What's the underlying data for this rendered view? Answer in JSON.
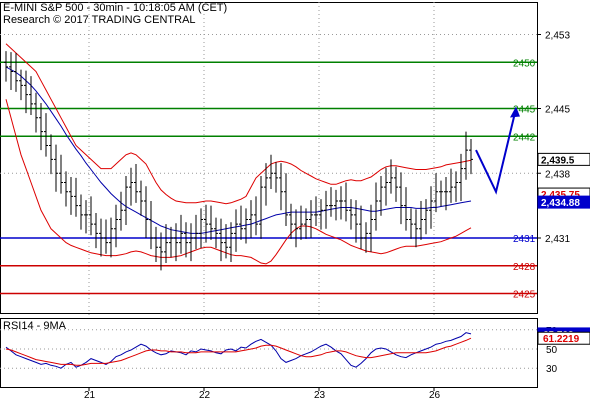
{
  "header": {
    "title": "E-MINI S&P 500 - 30min - 10:18:05 AM (CET)",
    "subtitle": "Research © 2017 TRADING CENTRAL"
  },
  "rsi_panel": {
    "label": "RSI14 - 9MA"
  },
  "colors": {
    "resistance": "#008000",
    "pivot": "#0000cc",
    "support": "#cc0000",
    "price": "#000000",
    "bollinger": "#dd0000",
    "moving_average": "#0000aa",
    "forecast_arrow": "#0000cc",
    "rsi_line": "#0000aa",
    "rsi_ma": "#dd0000"
  },
  "chart_data": [
    {
      "type": "ohlc",
      "ylim": [
        2423,
        2455
      ],
      "y_ticks": [
        "2,453",
        "2,445",
        "2,438",
        "2,431"
      ],
      "y_tick_values": [
        2453,
        2445,
        2438,
        2431
      ],
      "x_ticks": [
        "21",
        "22",
        "23",
        "26"
      ],
      "x_tick_bars": [
        15,
        38,
        61,
        84
      ],
      "bar_count": 94,
      "levels": [
        {
          "label": "2450",
          "value": 2450,
          "kind": "resistance"
        },
        {
          "label": "2445",
          "value": 2445,
          "kind": "resistance"
        },
        {
          "label": "2442",
          "value": 2442,
          "kind": "resistance"
        },
        {
          "label": "2431",
          "value": 2431,
          "kind": "pivot"
        },
        {
          "label": "2428",
          "value": 2428,
          "kind": "support"
        },
        {
          "label": "2425",
          "value": 2425,
          "kind": "support"
        }
      ],
      "price_tags": [
        {
          "label": "2,439.5",
          "value": 2439.5,
          "bg": "#ffffff",
          "fg": "#000000"
        },
        {
          "label": "2,435.75",
          "value": 2435.75,
          "bg": "#ffffff",
          "fg": "#dd0000"
        },
        {
          "label": "2,434.88",
          "value": 2434.88,
          "bg": "#0000cc",
          "fg": "#ffffff"
        }
      ],
      "close": [
        2449.5,
        2449,
        2448,
        2447.5,
        2446.5,
        2445.5,
        2444,
        2442.5,
        2441,
        2439.5,
        2438,
        2437,
        2436,
        2435.5,
        2434.5,
        2433.5,
        2433.5,
        2432.5,
        2431.5,
        2431,
        2430.5,
        2432,
        2433,
        2434,
        2436.5,
        2437,
        2436,
        2435,
        2433,
        2431,
        2430,
        2429.5,
        2430.5,
        2431,
        2430.5,
        2431.5,
        2430.5,
        2431,
        2431.5,
        2433,
        2432.5,
        2432,
        2431.5,
        2430.5,
        2430,
        2431.5,
        2432.5,
        2432,
        2433,
        2433.5,
        2432.5,
        2436.5,
        2437.5,
        2438,
        2437.5,
        2436,
        2433.5,
        2432.5,
        2432,
        2432.5,
        2433,
        2433.5,
        2433.5,
        2434,
        2434.5,
        2434.5,
        2435,
        2435,
        2434,
        2433.5,
        2432.5,
        2431,
        2431.5,
        2433,
        2435,
        2436.5,
        2437,
        2437.5,
        2436.5,
        2434.5,
        2433,
        2432.5,
        2432,
        2433,
        2434,
        2435,
        2436,
        2436,
        2436,
        2436.5,
        2437,
        2438.5,
        2440.5,
        2439.5
      ],
      "upper_band": [
        2452,
        2451.5,
        2451,
        2450.5,
        2450,
        2449.5,
        2449,
        2448,
        2447,
        2446,
        2445,
        2444,
        2443,
        2442,
        2441,
        2440.5,
        2440,
        2439.5,
        2439,
        2438.5,
        2438.5,
        2438.5,
        2439,
        2439.5,
        2440,
        2440.2,
        2440,
        2439.5,
        2439,
        2438,
        2437,
        2436.2,
        2435.7,
        2435.3,
        2435,
        2434.9,
        2434.8,
        2434.8,
        2434.8,
        2434.9,
        2435,
        2435,
        2434.9,
        2434.8,
        2434.7,
        2434.8,
        2435,
        2435.2,
        2435.5,
        2436.5,
        2437.5,
        2438,
        2438.5,
        2439,
        2439.2,
        2439.3,
        2439.2,
        2439,
        2438.7,
        2438.3,
        2438,
        2437.7,
        2437.4,
        2437.2,
        2437,
        2436.8,
        2436.8,
        2437,
        2437.2,
        2437.3,
        2437.2,
        2437.2,
        2437.4,
        2437.6,
        2438,
        2438.4,
        2438.7,
        2438.8,
        2438.8,
        2438.7,
        2438.6,
        2438.5,
        2438.4,
        2438.4,
        2438.4,
        2438.5,
        2438.6,
        2438.7,
        2438.9,
        2439,
        2439.1,
        2439.2,
        2439.3,
        2439.4
      ],
      "lower_band": [
        2446,
        2444,
        2442,
        2440,
        2438.5,
        2437,
        2435.5,
        2434,
        2433,
        2432,
        2431.5,
        2431,
        2430.5,
        2430.2,
        2430,
        2429.8,
        2429.6,
        2429.4,
        2429.3,
        2429.2,
        2429.1,
        2429.1,
        2429.1,
        2429.2,
        2429.3,
        2429.5,
        2429.6,
        2429.5,
        2429.3,
        2429.1,
        2429,
        2428.9,
        2428.9,
        2428.9,
        2429,
        2429.1,
        2429.3,
        2429.5,
        2429.7,
        2429.9,
        2430,
        2430,
        2429.8,
        2429.6,
        2429.4,
        2429.2,
        2429.1,
        2429.1,
        2429,
        2428.9,
        2428.6,
        2428.3,
        2428.2,
        2428.5,
        2429.2,
        2430,
        2430.8,
        2431.5,
        2432,
        2432.3,
        2432.3,
        2432.2,
        2432,
        2431.7,
        2431.4,
        2431.2,
        2431,
        2430.8,
        2430.5,
        2430.2,
        2430,
        2429.8,
        2429.6,
        2429.5,
        2429.4,
        2429.3,
        2429.4,
        2429.6,
        2429.8,
        2430,
        2430.1,
        2430.1,
        2430.1,
        2430.2,
        2430.3,
        2430.4,
        2430.5,
        2430.6,
        2430.8,
        2431,
        2431.2,
        2431.5,
        2431.8,
        2432.1
      ],
      "moving_average": [
        2449.5,
        2449.2,
        2448.9,
        2448.5,
        2448,
        2447.5,
        2446.9,
        2446.2,
        2445.5,
        2444.7,
        2443.9,
        2443.1,
        2442.2,
        2441.4,
        2440.6,
        2439.9,
        2439.1,
        2438.4,
        2437.7,
        2437,
        2436.4,
        2435.8,
        2435.3,
        2434.8,
        2434.4,
        2434.1,
        2433.8,
        2433.5,
        2433.2,
        2432.9,
        2432.6,
        2432.3,
        2432.1,
        2431.9,
        2431.8,
        2431.7,
        2431.6,
        2431.5,
        2431.5,
        2431.5,
        2431.6,
        2431.7,
        2431.8,
        2431.9,
        2432,
        2432.1,
        2432.2,
        2432.3,
        2432.4,
        2432.5,
        2432.7,
        2432.9,
        2433.1,
        2433.3,
        2433.5,
        2433.6,
        2433.7,
        2433.8,
        2433.8,
        2433.8,
        2433.8,
        2433.8,
        2433.8,
        2433.9,
        2434,
        2434.1,
        2434.2,
        2434.3,
        2434.3,
        2434.3,
        2434.2,
        2434.1,
        2434,
        2433.9,
        2433.9,
        2434,
        2434.1,
        2434.2,
        2434.3,
        2434.3,
        2434.3,
        2434.3,
        2434.2,
        2434.2,
        2434.2,
        2434.3,
        2434.3,
        2434.4,
        2434.5,
        2434.6,
        2434.7,
        2434.8,
        2434.9,
        2435
      ],
      "forecast_path": [
        [
          2440.5,
          94
        ],
        [
          2436,
          98
        ],
        [
          2445,
          102
        ]
      ]
    },
    {
      "type": "line",
      "label": "RSI14 - 9MA",
      "ylim": [
        25,
        75
      ],
      "y_ticks": [
        "70",
        "50",
        "30"
      ],
      "y_tick_values": [
        70,
        50,
        30
      ],
      "tags": [
        {
          "label": "65.703",
          "value": 65.703,
          "bg": "#0000cc",
          "fg": "#ffffff"
        },
        {
          "label": "61.2219",
          "value": 61.2219,
          "bg": "#ffffff",
          "fg": "#dd0000"
        }
      ],
      "series": [
        {
          "values": [
            52,
            48,
            44,
            42,
            40,
            38,
            36,
            34,
            35,
            33,
            32,
            30,
            34,
            36,
            31,
            33,
            36,
            40,
            38,
            36,
            34,
            37,
            42,
            44,
            47,
            49,
            52,
            55,
            53,
            49,
            46,
            44,
            45,
            48,
            47,
            46,
            44,
            48,
            47,
            50,
            49,
            48,
            46,
            45,
            49,
            50,
            48,
            52,
            51,
            55,
            58,
            60,
            57,
            54,
            48,
            40,
            36,
            38,
            40,
            43,
            45,
            47,
            50,
            53,
            55,
            52,
            48,
            45,
            39,
            33,
            31,
            35,
            40,
            46,
            50,
            51,
            50,
            47,
            44,
            42,
            41,
            44,
            46,
            48,
            50,
            52,
            55,
            56,
            58,
            59,
            61,
            63,
            67,
            65.7
          ]
        },
        {
          "values": [
            50,
            49,
            47,
            45,
            43,
            41,
            39,
            38,
            37,
            36,
            35,
            34,
            34,
            34,
            33,
            33,
            34,
            35,
            35,
            35,
            35,
            36,
            37,
            38,
            40,
            42,
            44,
            46,
            48,
            49,
            49,
            48,
            48,
            47,
            47,
            47,
            46,
            46,
            46,
            47,
            47,
            47,
            47,
            47,
            47,
            47,
            47,
            48,
            49,
            50,
            51,
            53,
            54,
            54,
            53,
            51,
            49,
            47,
            45,
            43,
            42,
            42,
            43,
            44,
            46,
            47,
            48,
            48,
            47,
            45,
            43,
            42,
            41,
            41,
            42,
            43,
            44,
            45,
            46,
            46,
            46,
            46,
            46,
            46,
            46,
            47,
            48,
            50,
            52,
            53,
            55,
            57,
            59,
            61.2
          ]
        }
      ]
    }
  ]
}
